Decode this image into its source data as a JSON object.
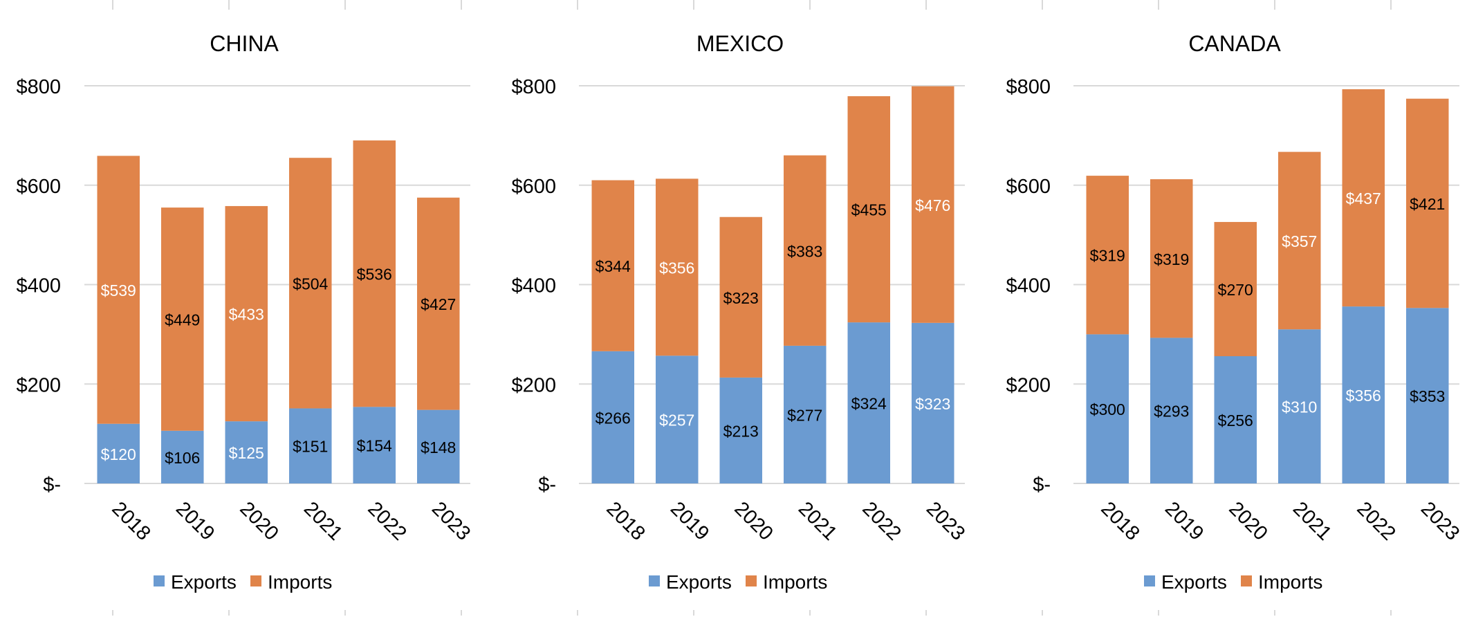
{
  "colors": {
    "exports": "#6b9bd1",
    "imports": "#e0844a",
    "grid": "#d9d9d9",
    "text": "#000000",
    "label_light": "#ffffff"
  },
  "chart_data": [
    {
      "type": "bar",
      "stacked": true,
      "title": "CHINA",
      "categories": [
        "2018",
        "2019",
        "2020",
        "2021",
        "2022",
        "2023"
      ],
      "series": [
        {
          "name": "Exports",
          "values": [
            120,
            106,
            125,
            151,
            154,
            148
          ],
          "labels": [
            "$120",
            "$106",
            "$125",
            "$151",
            "$154",
            "$148"
          ],
          "label_colors": [
            "light",
            "dark",
            "light",
            "dark",
            "dark",
            "dark"
          ]
        },
        {
          "name": "Imports",
          "values": [
            539,
            449,
            433,
            504,
            536,
            427
          ],
          "labels": [
            "$539",
            "$449",
            "$433",
            "$504",
            "$536",
            "$427"
          ],
          "label_colors": [
            "light",
            "dark",
            "light",
            "dark",
            "dark",
            "dark"
          ]
        }
      ],
      "ylim": [
        0,
        800
      ],
      "yticks": [
        0,
        200,
        400,
        600,
        800
      ],
      "ytick_labels": [
        "$-",
        "$200",
        "$400",
        "$600",
        "$800"
      ],
      "grid": true,
      "legend": "bottom"
    },
    {
      "type": "bar",
      "stacked": true,
      "title": "MEXICO",
      "categories": [
        "2018",
        "2019",
        "2020",
        "2021",
        "2022",
        "2023"
      ],
      "series": [
        {
          "name": "Exports",
          "values": [
            266,
            257,
            213,
            277,
            324,
            323
          ],
          "labels": [
            "$266",
            "$257",
            "$213",
            "$277",
            "$324",
            "$323"
          ],
          "label_colors": [
            "dark",
            "light",
            "dark",
            "dark",
            "dark",
            "light"
          ]
        },
        {
          "name": "Imports",
          "values": [
            344,
            356,
            323,
            383,
            455,
            476
          ],
          "labels": [
            "$344",
            "$356",
            "$323",
            "$383",
            "$455",
            "$476"
          ],
          "label_colors": [
            "dark",
            "light",
            "dark",
            "dark",
            "dark",
            "light"
          ]
        }
      ],
      "ylim": [
        0,
        800
      ],
      "yticks": [
        0,
        200,
        400,
        600,
        800
      ],
      "ytick_labels": [
        "$-",
        "$200",
        "$400",
        "$600",
        "$800"
      ],
      "grid": true,
      "legend": "bottom"
    },
    {
      "type": "bar",
      "stacked": true,
      "title": "CANADA",
      "categories": [
        "2018",
        "2019",
        "2020",
        "2021",
        "2022",
        "2023"
      ],
      "series": [
        {
          "name": "Exports",
          "values": [
            300,
            293,
            256,
            310,
            356,
            353
          ],
          "labels": [
            "$300",
            "$293",
            "$256",
            "$310",
            "$356",
            "$353"
          ],
          "label_colors": [
            "dark",
            "dark",
            "dark",
            "light",
            "light",
            "dark"
          ]
        },
        {
          "name": "Imports",
          "values": [
            319,
            319,
            270,
            357,
            437,
            421
          ],
          "labels": [
            "$319",
            "$319",
            "$270",
            "$357",
            "$437",
            "$421"
          ],
          "label_colors": [
            "dark",
            "dark",
            "dark",
            "light",
            "light",
            "dark"
          ]
        }
      ],
      "ylim": [
        0,
        800
      ],
      "yticks": [
        0,
        200,
        400,
        600,
        800
      ],
      "ytick_labels": [
        "$-",
        "$200",
        "$400",
        "$600",
        "$800"
      ],
      "grid": true,
      "legend": "bottom"
    }
  ]
}
